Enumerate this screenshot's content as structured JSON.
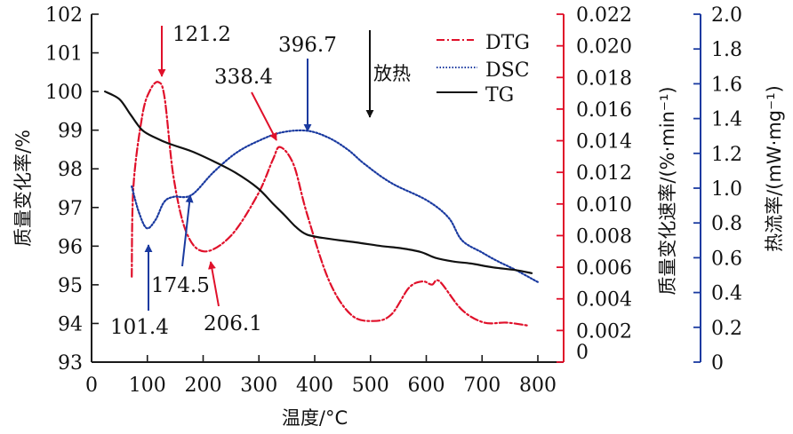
{
  "chart_data": {
    "type": "line",
    "title": "",
    "xlabel": "温度/°C",
    "xlim": [
      0,
      850
    ],
    "x_ticks": [
      0,
      100,
      200,
      300,
      400,
      500,
      600,
      700,
      800
    ],
    "x_tick_labels": [
      "0",
      "100",
      "200",
      "300",
      "400",
      "500",
      "600",
      "700",
      "800"
    ],
    "axes": {
      "left": {
        "label": "质量变化率/%",
        "lim": [
          93,
          102
        ],
        "ticks": [
          93,
          94,
          95,
          96,
          97,
          98,
          99,
          100,
          101,
          102
        ],
        "tick_labels": [
          "93",
          "94",
          "95",
          "96",
          "97",
          "98",
          "99",
          "100",
          "101",
          "102"
        ],
        "color": "#1a1a1a"
      },
      "right1": {
        "label": "质量变化速率/(%·min⁻¹)",
        "lim": [
          0,
          0.022
        ],
        "ticks": [
          0,
          0.002,
          0.004,
          0.006,
          0.008,
          0.01,
          0.012,
          0.014,
          0.016,
          0.018,
          0.02,
          0.022
        ],
        "tick_labels": [
          "0",
          "0.002",
          "0.004",
          "0.006",
          "0.008",
          "0.010",
          "0.012",
          "0.014",
          "0.016",
          "0.018",
          "0.020",
          "0.022"
        ],
        "color": "#e0102a"
      },
      "right2": {
        "label": "热流率/(mW·mg⁻¹)",
        "lim": [
          0,
          2.0
        ],
        "ticks": [
          0,
          0.2,
          0.4,
          0.6,
          0.8,
          1.0,
          1.2,
          1.4,
          1.6,
          1.8,
          2.0
        ],
        "tick_labels": [
          "0",
          "0.2",
          "0.4",
          "0.6",
          "0.8",
          "1.0",
          "1.2",
          "1.4",
          "1.6",
          "1.8",
          "2.0"
        ],
        "color": "#1a3aa0"
      }
    },
    "series": [
      {
        "name": "DTG",
        "axis": "right1",
        "color": "#e0102a",
        "style": "dash-dot",
        "x": [
          72,
          75,
          91,
          105,
          120,
          131,
          147,
          170,
          202,
          250,
          298,
          325,
          338,
          362,
          386,
          425,
          465,
          505,
          537,
          569,
          593,
          610,
          624,
          664,
          704,
          744,
          784
        ],
        "y": [
          0.0054,
          0.0111,
          0.0156,
          0.0172,
          0.0177,
          0.0167,
          0.0117,
          0.0082,
          0.007,
          0.008,
          0.0106,
          0.0128,
          0.0136,
          0.0125,
          0.0094,
          0.0052,
          0.003,
          0.0026,
          0.003,
          0.0047,
          0.0051,
          0.0049,
          0.0051,
          0.0033,
          0.0025,
          0.0025,
          0.0023
        ]
      },
      {
        "name": "DSC",
        "axis": "right2",
        "color": "#1a3aa0",
        "style": "dotted",
        "x": [
          72,
          85,
          99,
          115,
          130,
          147,
          179,
          218,
          258,
          298,
          340,
          386,
          425,
          460,
          489,
          537,
          601,
          640,
          664,
          700,
          728,
          760,
          800
        ],
        "y": [
          1.01,
          0.86,
          0.77,
          0.82,
          0.92,
          0.95,
          0.96,
          1.09,
          1.2,
          1.27,
          1.32,
          1.33,
          1.29,
          1.22,
          1.14,
          1.03,
          0.93,
          0.83,
          0.7,
          0.63,
          0.58,
          0.53,
          0.46
        ]
      },
      {
        "name": "TG",
        "axis": "left",
        "color": "#111111",
        "style": "solid",
        "x": [
          24,
          50,
          70,
          91,
          115,
          139,
          180,
          218,
          258,
          298,
          325,
          346,
          366,
          386,
          420,
          473,
          520,
          553,
          590,
          616,
          650,
          680,
          720,
          760,
          789
        ],
        "y": [
          100.0,
          99.8,
          99.4,
          99.0,
          98.8,
          98.65,
          98.45,
          98.2,
          97.9,
          97.5,
          97.1,
          96.8,
          96.5,
          96.3,
          96.2,
          96.1,
          96.0,
          95.95,
          95.85,
          95.7,
          95.6,
          95.55,
          95.45,
          95.38,
          95.3
        ]
      }
    ],
    "legend": {
      "position": "top-right",
      "entries": [
        "DTG",
        "DSC",
        "TG"
      ]
    },
    "annotations": [
      {
        "text": "121.2",
        "series": "DTG",
        "x": 121.2,
        "arrow": "down",
        "color": "#e0102a"
      },
      {
        "text": "338.4",
        "series": "DTG",
        "x": 338.4,
        "arrow": "down-right",
        "color": "#e0102a"
      },
      {
        "text": "206.1",
        "series": "DTG",
        "x": 206.1,
        "arrow": "up",
        "color": "#e0102a"
      },
      {
        "text": "396.7",
        "series": "DSC",
        "x": 396.7,
        "arrow": "down",
        "color": "#1a3aa0"
      },
      {
        "text": "101.4",
        "series": "DSC",
        "x": 101.4,
        "arrow": "up",
        "color": "#1a3aa0"
      },
      {
        "text": "174.5",
        "series": "DSC",
        "x": 174.5,
        "arrow": "up",
        "color": "#1a3aa0"
      },
      {
        "text": "放热",
        "arrow": "down",
        "color": "#111111"
      }
    ]
  }
}
